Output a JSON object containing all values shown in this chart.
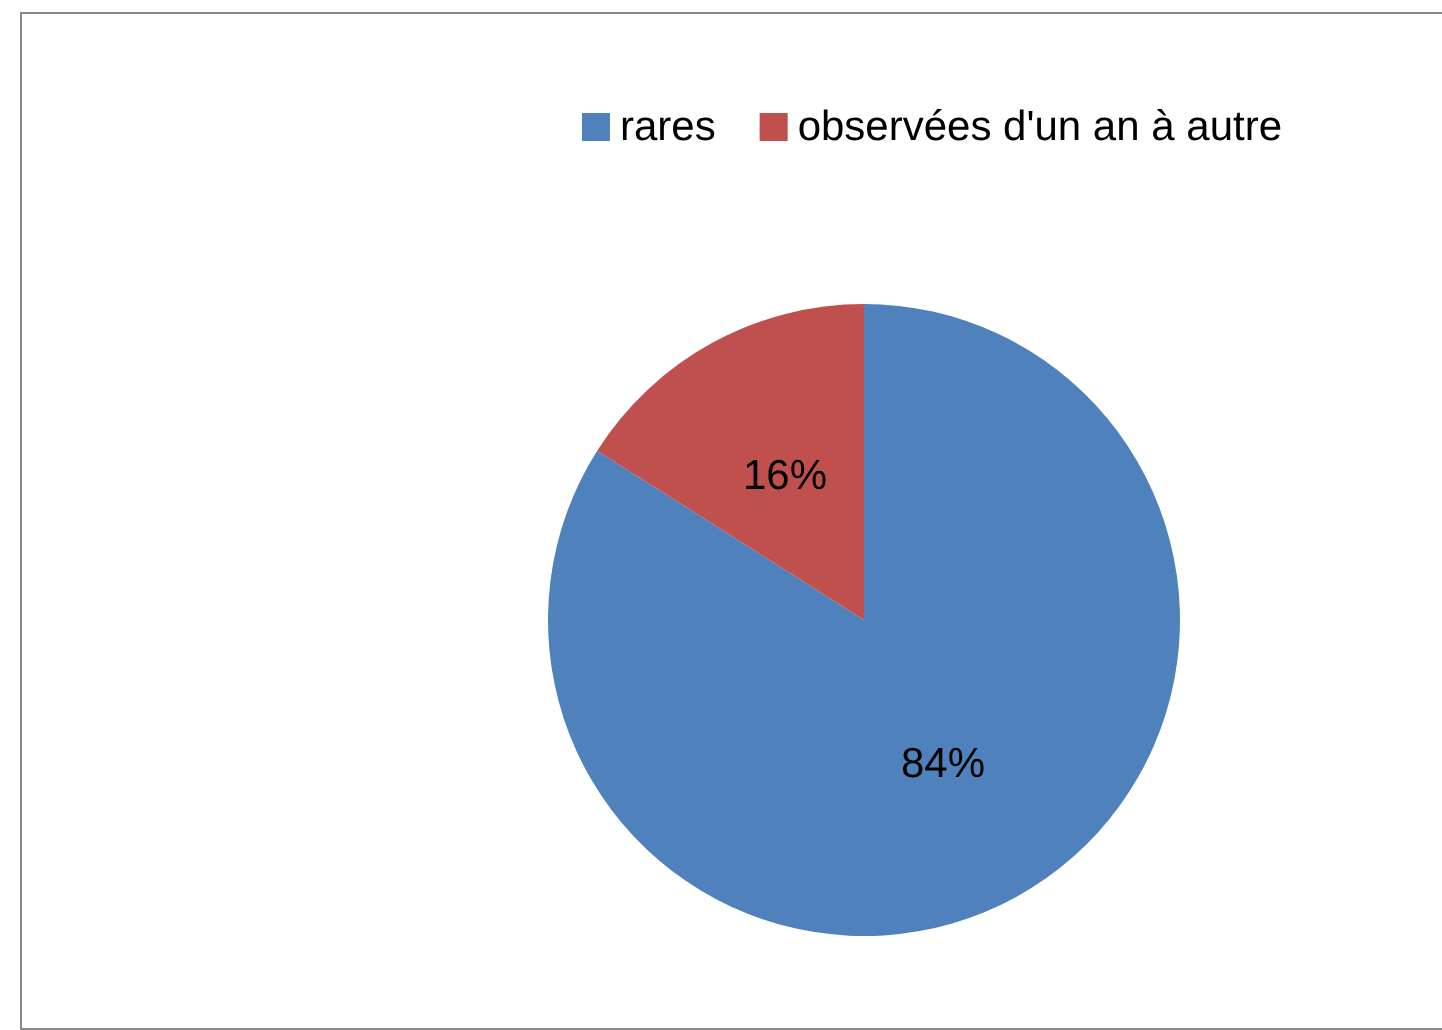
{
  "chart_data": {
    "type": "pie",
    "categories": [
      "rares",
      "observées d'un an à autre"
    ],
    "values": [
      84,
      16
    ],
    "colors": [
      "#4f81bd",
      "#c0504d"
    ],
    "value_labels": [
      "84%",
      "16%"
    ],
    "legend": "top right"
  }
}
